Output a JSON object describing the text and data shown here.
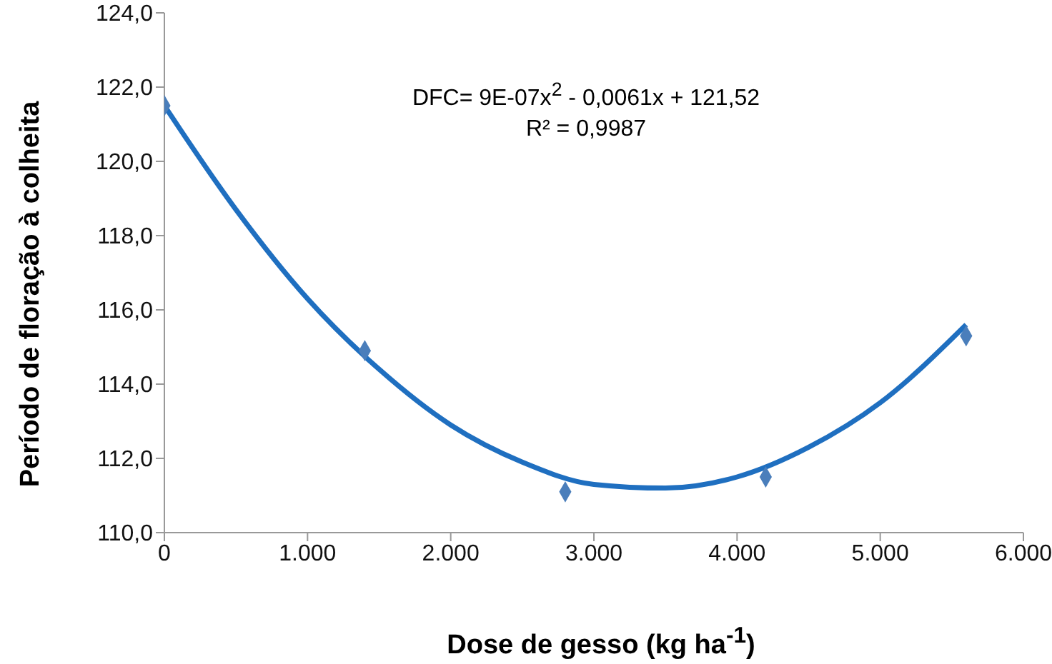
{
  "chart_data": {
    "type": "scatter",
    "xlabel": "Dose de gesso (kg ha$^{-1}$)",
    "ylabel": "Período de floração à colheita",
    "annotations": [
      "DFC= 9E-07x$^{2}$ - 0,0061x + 121,52",
      "R² = 0,9987"
    ],
    "xlim": [
      0,
      6000
    ],
    "xticks": [
      0,
      {
        "value": 1000,
        "label": "1.000"
      },
      {
        "value": 2000,
        "label": "2.000"
      },
      {
        "value": 3000,
        "label": "3.000"
      },
      {
        "value": 4000,
        "label": "4.000"
      },
      {
        "value": 5000,
        "label": "5.000"
      },
      {
        "value": 6000,
        "label": "6.000"
      }
    ],
    "ylim": [
      110,
      124
    ],
    "yticks": [
      {
        "value": 110,
        "label": "110,0"
      },
      {
        "value": 112,
        "label": "112,0"
      },
      {
        "value": 114,
        "label": "114,0"
      },
      {
        "value": 116,
        "label": "116,0"
      },
      {
        "value": 118,
        "label": "118,0"
      },
      {
        "value": 120,
        "label": "120,0"
      },
      {
        "value": 122,
        "label": "122,0"
      },
      {
        "value": 124,
        "label": "124,0"
      }
    ],
    "grid": false,
    "legend": false,
    "marker": "diamond",
    "series": [
      {
        "color": "#4a7ebb",
        "x": [
          0,
          1400,
          2800,
          4200,
          5600
        ],
        "values": [
          121.5,
          114.9,
          111.1,
          111.5,
          115.3
        ]
      },
      {
        "type": "line",
        "color": "#1f6fc0",
        "marker": "none",
        "x": [
          0,
          500,
          1000,
          1500,
          2000,
          2500,
          3000,
          3500,
          4000,
          4500,
          5000,
          5600
        ],
        "values": [
          121.5,
          118.7,
          116.3,
          114.4,
          112.9,
          111.9,
          111.3,
          111.2,
          111.5,
          112.3,
          113.5,
          115.6
        ]
      }
    ]
  }
}
